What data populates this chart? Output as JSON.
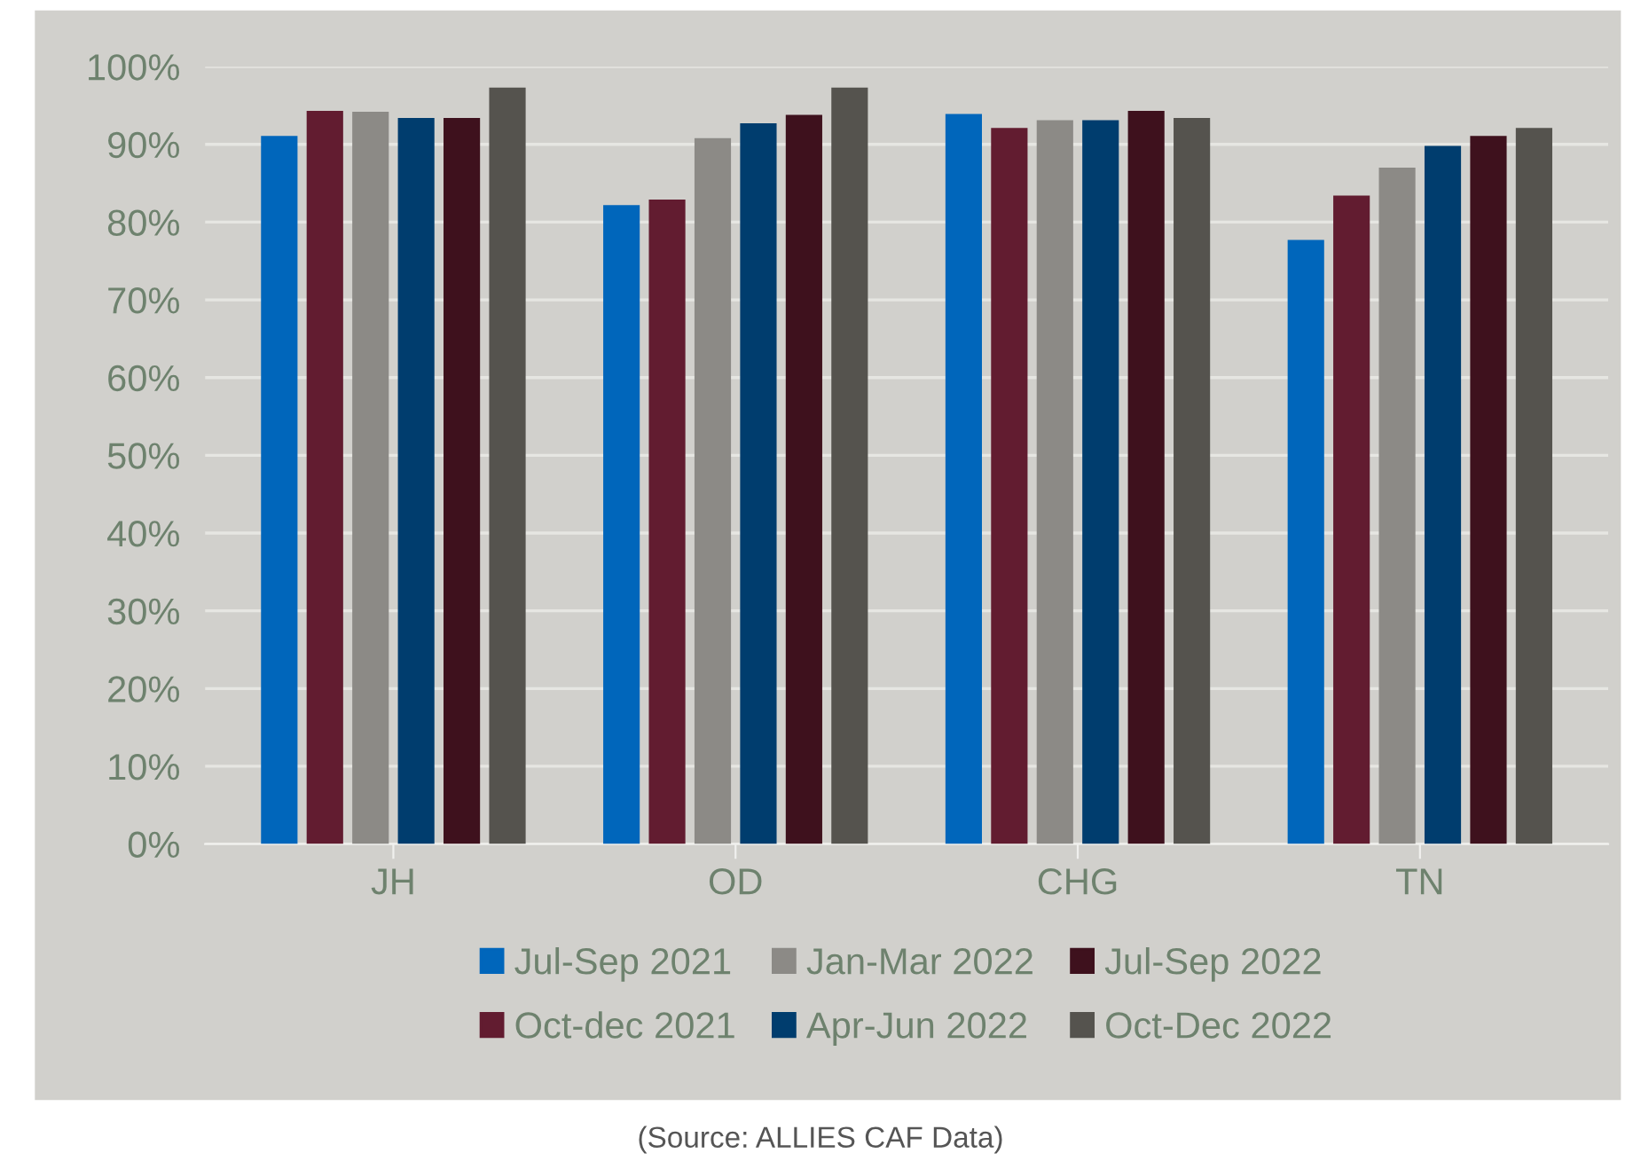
{
  "chart_data": {
    "type": "bar",
    "categories": [
      "JH",
      "OD",
      "CHG",
      "TN"
    ],
    "series": [
      {
        "name": "Jul-Sep 2021",
        "color": "#0066bb",
        "values": [
          91.1,
          82.2,
          93.9,
          77.7
        ]
      },
      {
        "name": "Oct-dec 2021",
        "color": "#621c30",
        "values": [
          94.3,
          82.9,
          92.1,
          83.4
        ]
      },
      {
        "name": "Jan-Mar 2022",
        "color": "#8c8a86",
        "values": [
          94.2,
          90.8,
          93.1,
          87.0
        ]
      },
      {
        "name": "Apr-Jun 2022",
        "color": "#003d6e",
        "values": [
          93.4,
          92.7,
          93.1,
          89.8
        ]
      },
      {
        "name": "Jul-Sep 2022",
        "color": "#3e111d",
        "values": [
          93.4,
          93.8,
          94.3,
          91.1
        ]
      },
      {
        "name": "Oct-Dec 2022",
        "color": "#55534e",
        "values": [
          97.3,
          97.3,
          93.4,
          92.1
        ]
      }
    ],
    "ylim": [
      0,
      100
    ],
    "yticks": [
      {
        "value": 0,
        "label": "0%"
      },
      {
        "value": 10,
        "label": "10%"
      },
      {
        "value": 20,
        "label": "20%"
      },
      {
        "value": 30,
        "label": "30%"
      },
      {
        "value": 40,
        "label": "40%"
      },
      {
        "value": 50,
        "label": "50%"
      },
      {
        "value": 60,
        "label": "60%"
      },
      {
        "value": 70,
        "label": "70%"
      },
      {
        "value": 80,
        "label": "80%"
      },
      {
        "value": 90,
        "label": "90%"
      },
      {
        "value": 100,
        "label": "100%"
      }
    ],
    "grid": "y",
    "legend": "bottom",
    "annotations": [
      "(Source: ALLIES CAF Data)"
    ]
  }
}
